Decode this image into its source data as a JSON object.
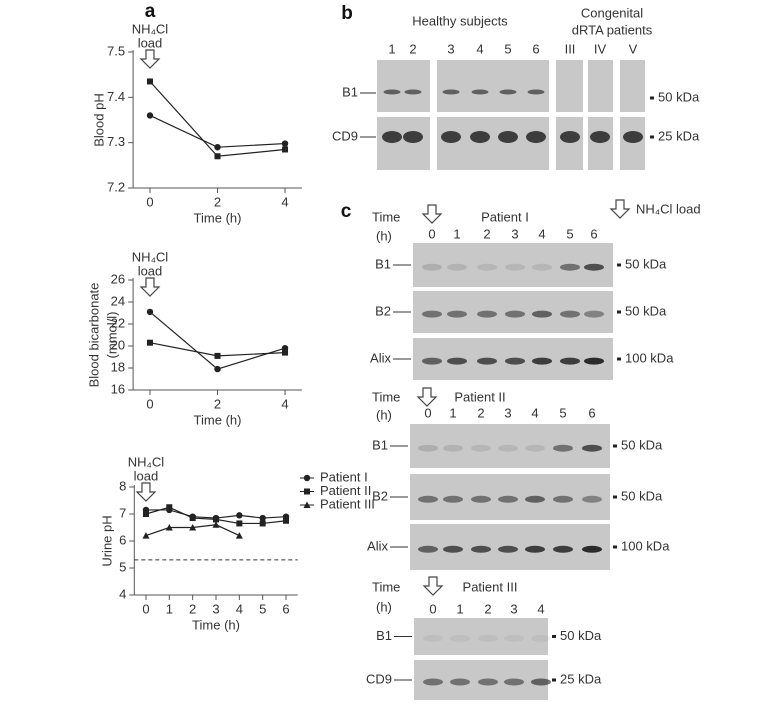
{
  "chart_data": [
    {
      "type": "line",
      "ylabel": [
        "Blood pH"
      ],
      "xlabel": "Time (h)",
      "x": [
        0,
        2,
        4
      ],
      "xlim": [
        -0.5,
        4.5
      ],
      "xticks": [
        0,
        2,
        4
      ],
      "ylim": [
        7.2,
        7.5
      ],
      "yticks": [
        7.2,
        7.3,
        7.4,
        7.5
      ],
      "annotation": {
        "text": [
          "NH₄Cl",
          "load"
        ],
        "x": 0
      },
      "series": [
        {
          "color": "#222222",
          "marker": "square",
          "values": [
            7.435,
            7.27,
            7.285
          ]
        },
        {
          "color": "#222222",
          "marker": "circle",
          "values": [
            7.36,
            7.29,
            7.298
          ]
        }
      ]
    },
    {
      "type": "line",
      "ylabel": [
        "Blood bicarbonate",
        "(mmol/l)"
      ],
      "xlabel": "Time (h)",
      "x": [
        0,
        2,
        4
      ],
      "xlim": [
        -0.5,
        4.5
      ],
      "xticks": [
        0,
        2,
        4
      ],
      "ylim": [
        16,
        26
      ],
      "yticks": [
        16,
        18,
        20,
        22,
        24,
        26
      ],
      "annotation": {
        "text": [
          "NH₄Cl",
          "load"
        ],
        "x": 0
      },
      "series": [
        {
          "color": "#222222",
          "marker": "circle",
          "values": [
            23.1,
            17.9,
            19.8
          ]
        },
        {
          "color": "#222222",
          "marker": "square",
          "values": [
            20.3,
            19.1,
            19.4
          ]
        }
      ]
    },
    {
      "type": "line",
      "ylabel": [
        "Urine pH"
      ],
      "xlabel": "Time (h)",
      "x": [
        0,
        1,
        2,
        3,
        4,
        5,
        6
      ],
      "xlim": [
        -0.5,
        6.5
      ],
      "xticks": [
        0,
        1,
        2,
        3,
        4,
        5,
        6
      ],
      "ylim": [
        4,
        8
      ],
      "yticks": [
        4,
        5,
        6,
        7,
        8
      ],
      "hline": 5.3,
      "legend": "top-right",
      "annotation": {
        "text": [
          "NH₄Cl",
          "load"
        ],
        "x": 0
      },
      "series": [
        {
          "name": "Patient I",
          "color": "#222222",
          "marker": "circle",
          "values": [
            7.15,
            7.15,
            6.9,
            6.85,
            6.95,
            6.85,
            6.9
          ]
        },
        {
          "name": "Patient II",
          "color": "#222222",
          "marker": "square",
          "values": [
            7.0,
            7.25,
            6.85,
            6.8,
            6.65,
            6.65,
            6.75
          ]
        },
        {
          "name": "Patient III",
          "color": "#222222",
          "marker": "triangle",
          "values": [
            6.2,
            6.5,
            6.5,
            6.6,
            6.2,
            null,
            null
          ]
        }
      ]
    }
  ],
  "panel_labels": [
    "a",
    "b",
    "c"
  ],
  "panel_b": {
    "groups": [
      "Healthy subjects",
      "Congenital",
      "dRTA patients"
    ],
    "lanes": [
      "1",
      "2",
      "3",
      "4",
      "5",
      "6",
      "III",
      "IV",
      "V"
    ],
    "rows": [
      {
        "label": "B1",
        "marker": "50 kDa"
      },
      {
        "label": "CD9",
        "marker": "25 kDa"
      }
    ]
  },
  "panel_c": {
    "legend": "NH₄Cl load",
    "blocks": [
      {
        "time": [
          "Time",
          "(h)"
        ],
        "patient": "Patient I",
        "lanes": [
          "0",
          "1",
          "2",
          "3",
          "4",
          "5",
          "6"
        ],
        "rows": [
          {
            "label": "B1",
            "marker": "50 kDa"
          },
          {
            "label": "B2",
            "marker": "50 kDa"
          },
          {
            "label": "Alix",
            "marker": "100 kDa"
          }
        ]
      },
      {
        "time": [
          "Time",
          "(h)"
        ],
        "patient": "Patient II",
        "lanes": [
          "0",
          "1",
          "2",
          "3",
          "4",
          "5",
          "6"
        ],
        "rows": [
          {
            "label": "B1",
            "marker": "50 kDa"
          },
          {
            "label": "B2",
            "marker": "50 kDa"
          },
          {
            "label": "Alix",
            "marker": "100 kDa"
          }
        ]
      },
      {
        "time": [
          "Time",
          "(h)"
        ],
        "patient": "Patient III",
        "lanes": [
          "0",
          "1",
          "2",
          "3",
          "4"
        ],
        "rows": [
          {
            "label": "B1",
            "marker": "50 kDa"
          },
          {
            "label": "CD9",
            "marker": "25 kDa"
          }
        ]
      }
    ]
  }
}
